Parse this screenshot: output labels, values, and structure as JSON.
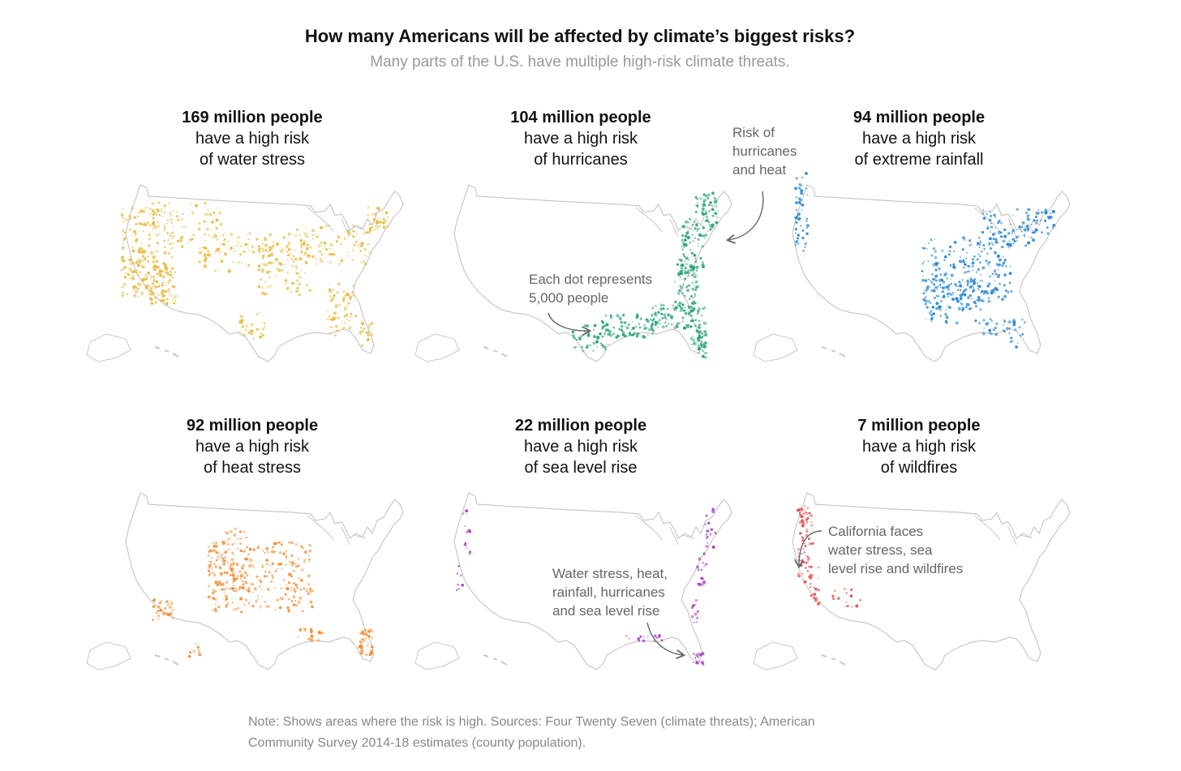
{
  "header": {
    "title": "How many Americans will be affected by climate’s biggest risks?",
    "subtitle": "Many parts of the U.S. have multiple high-risk climate threats."
  },
  "panels": [
    {
      "count": "169 million people",
      "line1": "have a high risk",
      "line2": "of water stress",
      "color": "#e8b83a",
      "risk": "water-stress"
    },
    {
      "count": "104 million people",
      "line1": "have a high risk",
      "line2": "of hurricanes",
      "color": "#1f9e74",
      "risk": "hurricanes"
    },
    {
      "count": "94 million people",
      "line1": "have a high risk",
      "line2": "of extreme rainfall",
      "color": "#2383cf",
      "risk": "extreme-rainfall"
    },
    {
      "count": "92 million people",
      "line1": "have a high risk",
      "line2": "of heat stress",
      "color": "#f08a2c",
      "risk": "heat-stress"
    },
    {
      "count": "22 million people",
      "line1": "have a high risk",
      "line2": "of sea level rise",
      "color": "#a437c4",
      "risk": "sea-level-rise"
    },
    {
      "count": "7 million people",
      "line1": "have a high risk",
      "line2": "of wildfires",
      "color": "#e04444",
      "risk": "wildfires"
    }
  ],
  "annotations": {
    "hurricanes_heat": [
      "Risk of",
      "hurricanes",
      "and heat"
    ],
    "dot_legend": [
      "Each dot represents",
      "5,000 people"
    ],
    "multi_risk": [
      "Water stress, heat,",
      "rainfall, hurricanes",
      "and sea level rise"
    ],
    "california": [
      "California faces",
      "water stress, sea",
      "level rise and wildfires"
    ]
  },
  "footnote": {
    "line1": "Note: Shows areas where the risk is high. Sources: Four Twenty Seven (climate threats); American",
    "line2": "Community Survey 2014-18 estimates (county population)."
  },
  "colors": {
    "outline": "#c8c8c8",
    "annotation": "#666666"
  }
}
